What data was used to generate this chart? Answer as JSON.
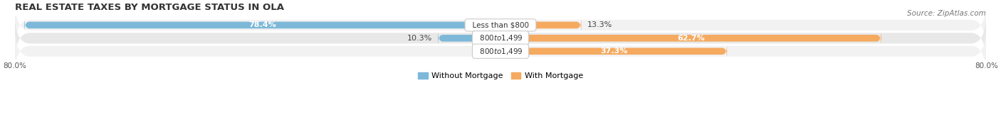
{
  "title": "REAL ESTATE TAXES BY MORTGAGE STATUS IN OLA",
  "source": "Source: ZipAtlas.com",
  "categories": [
    "Less than $800",
    "$800 to $1,499",
    "$800 to $1,499"
  ],
  "without_mortgage": [
    78.4,
    10.3,
    0.0
  ],
  "with_mortgage": [
    13.3,
    62.7,
    37.3
  ],
  "color_without": "#7db8d8",
  "color_with": "#f5aa60",
  "color_without_light": "#a8cfe0",
  "color_with_light": "#fad0a0",
  "xlim_left": -80,
  "xlim_right": 80,
  "legend_without": "Without Mortgage",
  "legend_with": "With Mortgage",
  "bar_height": 0.52,
  "row_bg_odd": "#f2f2f2",
  "row_bg_even": "#e8e8e8",
  "title_fontsize": 9.5,
  "source_fontsize": 7.5,
  "label_fontsize": 8,
  "tick_fontsize": 7.5,
  "cat_label_fontsize": 7.5,
  "white_label_threshold": 30
}
